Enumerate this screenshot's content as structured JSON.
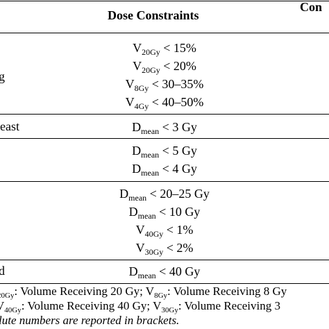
{
  "header": {
    "dose_constraints": "Dose Constraints",
    "constraint_partial": "Con"
  },
  "rows": [
    {
      "organ": "g",
      "constraints": [
        {
          "sym": "V",
          "sub": "20Gy",
          "rest": " < 15%"
        },
        {
          "sym": "V",
          "sub": "20Gy",
          "rest": " < 20%"
        },
        {
          "sym": "V",
          "sub": "8Gy",
          "rest": " < 30–35%"
        },
        {
          "sym": "V",
          "sub": "4Gy",
          "rest": " < 40–50%"
        }
      ]
    },
    {
      "organ": "east",
      "constraints": [
        {
          "sym": "D",
          "sub": "mean",
          "rest": " < 3 Gy"
        }
      ]
    },
    {
      "organ": "",
      "constraints": [
        {
          "sym": "D",
          "sub": "mean",
          "rest": " < 5 Gy"
        },
        {
          "sym": "D",
          "sub": "mean",
          "rest": " < 4 Gy"
        }
      ]
    },
    {
      "organ": "",
      "constraints": [
        {
          "sym": "D",
          "sub": "mean",
          "rest": " < 20–25 Gy"
        },
        {
          "sym": "D",
          "sub": "mean",
          "rest": " < 10 Gy"
        },
        {
          "sym": "V",
          "sub": "40Gy",
          "rest": " < 1%"
        },
        {
          "sym": "V",
          "sub": "30Gy",
          "rest": " < 2%"
        }
      ]
    },
    {
      "organ": "d",
      "constraints": [
        {
          "sym": "D",
          "sub": "mean",
          "rest": " < 40 Gy"
        }
      ]
    }
  ],
  "footnotes": {
    "line1": {
      "a_sub": "20Gy",
      "a_text": ": Volume Receiving 20 Gy; V",
      "b_sub": "8Gy",
      "b_text": ": Volume Receiving 8 Gy"
    },
    "line2": {
      "a_sym": "V",
      "a_sub": "40Gy",
      "a_text": ": Volume Receiving 40 Gy; V",
      "b_sub": "30Gy",
      "b_text": ": Volume Receiving 3"
    },
    "line3": "lute numbers are reported in brackets."
  }
}
